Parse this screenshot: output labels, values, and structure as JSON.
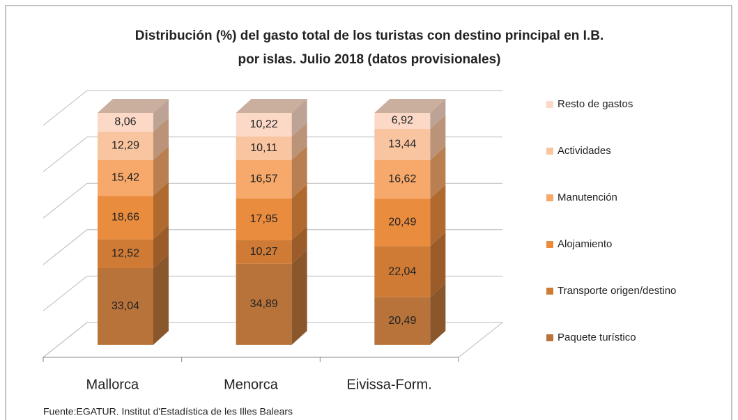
{
  "chart_data": {
    "type": "bar3d_stacked",
    "title": [
      "Distribución (%) del gasto total de los turistas con destino principal  en I.B.",
      "por islas. Julio 2018 (datos provisionales)"
    ],
    "source": "Fuente:EGATUR. Institut d'Estadística de les Illes Balears",
    "categories": [
      "Mallorca",
      "Menorca",
      "Eivissa-Form."
    ],
    "series": [
      {
        "name": "Paquete turístico",
        "color": "#b8733a",
        "values": [
          33.04,
          34.89,
          20.49
        ],
        "value_labels": [
          "33,04",
          "34,89",
          "20,49"
        ]
      },
      {
        "name": "Transporte origen/destino",
        "color": "#cf7b36",
        "values": [
          12.52,
          10.27,
          22.04
        ],
        "value_labels": [
          "12,52",
          "10,27",
          "22,04"
        ]
      },
      {
        "name": "Alojamiento",
        "color": "#ea8c3e",
        "values": [
          18.66,
          17.95,
          20.49
        ],
        "value_labels": [
          "18,66",
          "17,95",
          "20,49"
        ]
      },
      {
        "name": "Manutención",
        "color": "#f6a96a",
        "values": [
          15.42,
          16.57,
          16.62
        ],
        "value_labels": [
          "15,42",
          "16,57",
          "16,62"
        ]
      },
      {
        "name": "Actividades",
        "color": "#f9c4a0",
        "values": [
          12.29,
          10.11,
          13.44
        ],
        "value_labels": [
          "12,29",
          "10,11",
          "13,44"
        ]
      },
      {
        "name": "Resto de gastos",
        "color": "#fcd9c6",
        "values": [
          8.06,
          10.22,
          6.92
        ],
        "value_labels": [
          "8,06",
          "10,22",
          "6,92"
        ]
      }
    ],
    "ylim": [
      0,
      100
    ],
    "yticks": [
      0,
      20,
      40,
      60,
      80,
      100
    ],
    "grid": true,
    "legend": "right"
  }
}
